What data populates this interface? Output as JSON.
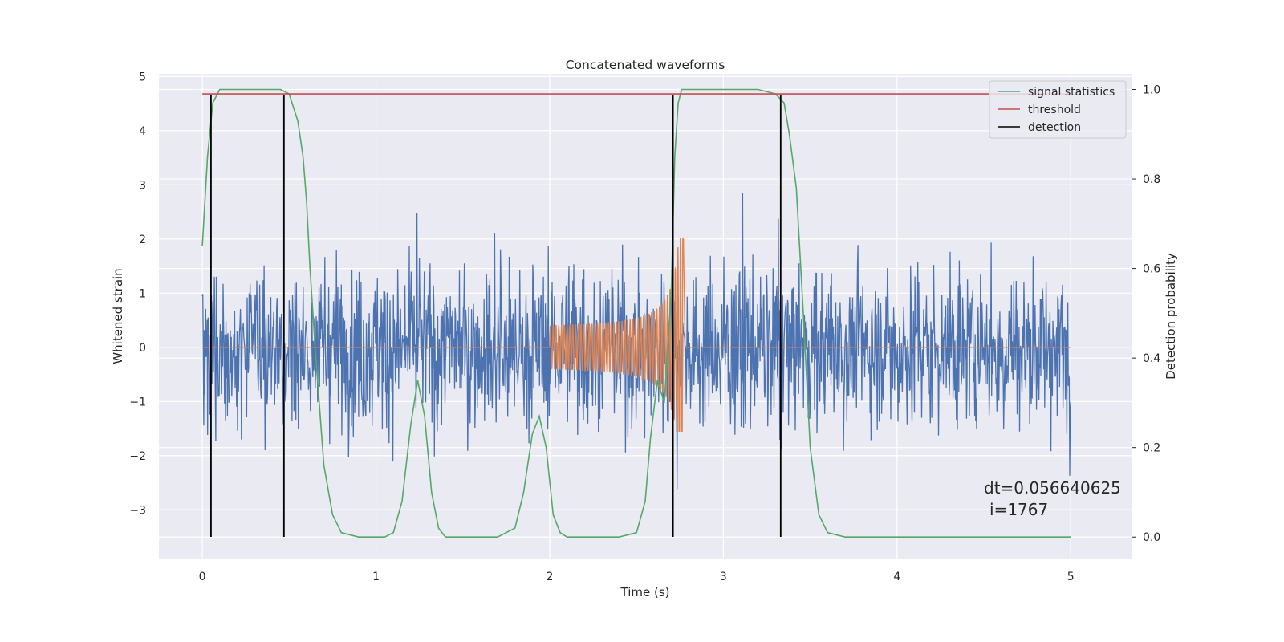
{
  "chart_data": {
    "type": "line",
    "title": "Concatenated waveforms",
    "xlabel": "Time (s)",
    "ylabel": "Whitened strain",
    "y2label": "Detection probability",
    "xlim": [
      -0.25,
      5.35
    ],
    "ylim": [
      -3.9,
      5.05
    ],
    "y2lim": [
      -0.048,
      1.035
    ],
    "x_ticks": [
      0,
      1,
      2,
      3,
      4,
      5
    ],
    "y_ticks": [
      -3,
      -2,
      -1,
      0,
      1,
      2,
      3,
      4,
      5
    ],
    "y2_ticks": [
      0.0,
      0.2,
      0.4,
      0.6,
      0.8,
      1.0
    ],
    "x_tick_labels": [
      "0",
      "1",
      "2",
      "3",
      "4",
      "5"
    ],
    "y_tick_labels": [
      "−3",
      "−2",
      "−1",
      "0",
      "1",
      "2",
      "3",
      "4",
      "5"
    ],
    "y2_tick_labels": [
      "0.0",
      "0.2",
      "0.4",
      "0.6",
      "0.8",
      "1.0"
    ],
    "grid": true,
    "legend": {
      "placement": "top-right",
      "entries": [
        "signal statistics",
        "threshold",
        "detection"
      ]
    },
    "colors": {
      "noise": "#4c72b0",
      "template": "#dd8452",
      "signal_statistics": "#55a868",
      "threshold": "#c44e52",
      "detection": "#000000",
      "background": "#eaeaf2",
      "grid": "#ffffff"
    },
    "series": [
      {
        "name": "signal statistics",
        "axis": "right",
        "x": [
          0.0,
          0.03,
          0.06,
          0.1,
          0.2,
          0.3,
          0.4,
          0.45,
          0.5,
          0.55,
          0.58,
          0.6,
          0.62,
          0.65,
          0.7,
          0.75,
          0.8,
          0.9,
          1.0,
          1.05,
          1.1,
          1.15,
          1.2,
          1.24,
          1.28,
          1.32,
          1.36,
          1.4,
          1.5,
          1.6,
          1.7,
          1.8,
          1.85,
          1.9,
          1.94,
          1.98,
          2.02,
          2.06,
          2.1,
          2.2,
          2.3,
          2.4,
          2.5,
          2.55,
          2.58,
          2.62,
          2.66,
          2.7,
          2.72,
          2.74,
          2.76,
          2.78,
          2.8,
          2.9,
          3.0,
          3.1,
          3.2,
          3.3,
          3.35,
          3.38,
          3.42,
          3.46,
          3.5,
          3.55,
          3.6,
          3.7,
          3.8,
          3.9,
          4.0,
          4.2,
          4.5,
          4.8,
          5.0
        ],
        "values": [
          0.65,
          0.85,
          0.97,
          1.0,
          1.0,
          1.0,
          1.0,
          1.0,
          0.99,
          0.93,
          0.85,
          0.75,
          0.6,
          0.42,
          0.16,
          0.05,
          0.01,
          0.0,
          0.0,
          0.0,
          0.01,
          0.08,
          0.25,
          0.35,
          0.27,
          0.1,
          0.02,
          0.0,
          0.0,
          0.0,
          0.0,
          0.02,
          0.1,
          0.23,
          0.27,
          0.2,
          0.05,
          0.01,
          0.0,
          0.0,
          0.0,
          0.0,
          0.01,
          0.08,
          0.22,
          0.35,
          0.3,
          0.55,
          0.85,
          0.97,
          1.0,
          1.0,
          1.0,
          1.0,
          1.0,
          1.0,
          1.0,
          0.99,
          0.97,
          0.9,
          0.78,
          0.5,
          0.2,
          0.05,
          0.01,
          0.0,
          0.0,
          0.0,
          0.0,
          0.0,
          0.0,
          0.0,
          0.0
        ]
      },
      {
        "name": "threshold",
        "axis": "right",
        "x": [
          0.0,
          5.0
        ],
        "values": [
          0.99,
          0.99
        ]
      },
      {
        "name": "detection",
        "axis": "left",
        "x": [
          0.05,
          0.47,
          2.71,
          3.33
        ]
      }
    ],
    "annotations": [
      "dt=0.056640625",
      "i=1767"
    ]
  }
}
